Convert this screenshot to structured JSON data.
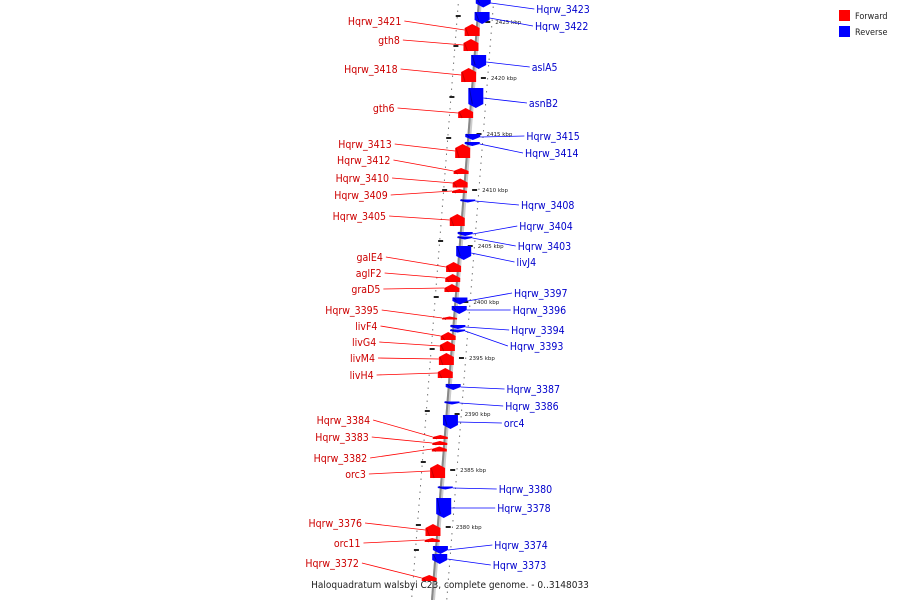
{
  "title": "Haloquadratum walsbyi C23, complete genome. - 0..3148033",
  "legend": [
    {
      "label": "Forward",
      "color": "#ff0000"
    },
    {
      "label": "Reverse",
      "color": "#0000ff"
    }
  ],
  "colors": {
    "forward": "#ff0000",
    "reverse": "#0000ff",
    "backbone": "#999999"
  },
  "ticks": [
    "2425 kbp",
    "2420 kbp",
    "2415 kbp",
    "2410 kbp",
    "2405 kbp",
    "2400 kbp",
    "2395 kbp",
    "2390 kbp",
    "2385 kbp",
    "2380 kbp"
  ],
  "forward_genes": [
    "Hqrw_3421",
    "gth8",
    "Hqrw_3418",
    "gth6",
    "Hqrw_3413",
    "Hqrw_3412",
    "Hqrw_3410",
    "Hqrw_3409",
    "Hqrw_3405",
    "galE4",
    "aglF2",
    "graD5",
    "Hqrw_3395",
    "livF4",
    "livG4",
    "livM4",
    "livH4",
    "Hqrw_3384",
    "Hqrw_3383",
    "Hqrw_3382",
    "orc3",
    "Hqrw_3376",
    "orc11",
    "Hqrw_3372"
  ],
  "reverse_genes": [
    "Hqrw_3423",
    "Hqrw_3422",
    "aslA5",
    "asnB2",
    "Hqrw_3415",
    "Hqrw_3414",
    "Hqrw_3408",
    "Hqrw_3404",
    "Hqrw_3403",
    "livJ4",
    "Hqrw_3397",
    "Hqrw_3396",
    "Hqrw_3394",
    "Hqrw_3393",
    "Hqrw_3387",
    "Hqrw_3386",
    "orc4",
    "Hqrw_3380",
    "Hqrw_3378",
    "Hqrw_3374",
    "Hqrw_3373"
  ]
}
